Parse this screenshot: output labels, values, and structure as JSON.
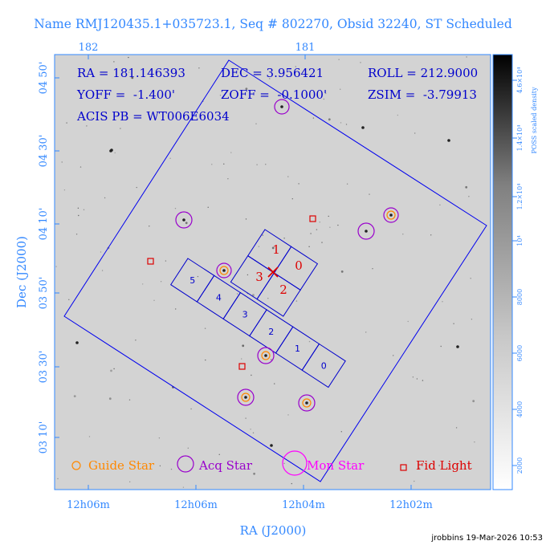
{
  "title": "Name RMJ120435.1+035723.1, Seq # 802270, Obsid 32240, ST Scheduled",
  "info": {
    "ra": "RA = 181.146393",
    "dec": "DEC = 3.956421",
    "roll": "ROLL = 212.9000",
    "yoff": "YOFF =  -1.400'",
    "zoff": "ZOFF =  -0.1000'",
    "zsim": "ZSIM =  -3.79913",
    "acis_pb": "ACIS PB = WT006E6034"
  },
  "axes": {
    "xlabel": "RA (J2000)",
    "ylabel": "Dec (J2000)",
    "x_ticks_bottom": [
      "12h06m",
      "12h06m",
      "12h04m",
      "12h02m"
    ],
    "x_ticks_top": [
      "182",
      "181"
    ],
    "y_ticks": [
      "04 50'",
      "04 30'",
      "04 10'",
      "03 50'",
      "03 30'",
      "03 10'"
    ],
    "y_right": [
      "4.6×10⁴",
      "1.4×10⁴",
      "1.2×10⁴",
      "10⁴",
      "8000",
      "6000",
      "4000",
      "2000"
    ]
  },
  "colorbar_label": "POSS scaled density",
  "chips": [
    {
      "label": "5",
      "color": "#0000cc"
    },
    {
      "label": "4",
      "color": "#0000cc"
    },
    {
      "label": "3",
      "color": "#0000cc"
    },
    {
      "label": "2",
      "color": "#0000cc"
    },
    {
      "label": "1",
      "color": "#0000cc"
    },
    {
      "label": "0",
      "color": "#0000cc"
    }
  ],
  "i_chips": [
    {
      "label": "1"
    },
    {
      "label": "0"
    },
    {
      "label": "3"
    },
    {
      "label": "2"
    }
  ],
  "legend": [
    {
      "label": "Guide Star",
      "color": "#ff8800"
    },
    {
      "label": "Acq Star",
      "color": "#9900cc"
    },
    {
      "label": "Mon Star",
      "color": "#ff00ff"
    },
    {
      "label": "Fid Light",
      "color": "#dd0000"
    }
  ],
  "footer": "jrobbins 19-Mar-2026 10:53",
  "colors": {
    "label_blue": "#3388ff",
    "frame_blue": "#0000cc",
    "sky": "#d4d4d4"
  }
}
